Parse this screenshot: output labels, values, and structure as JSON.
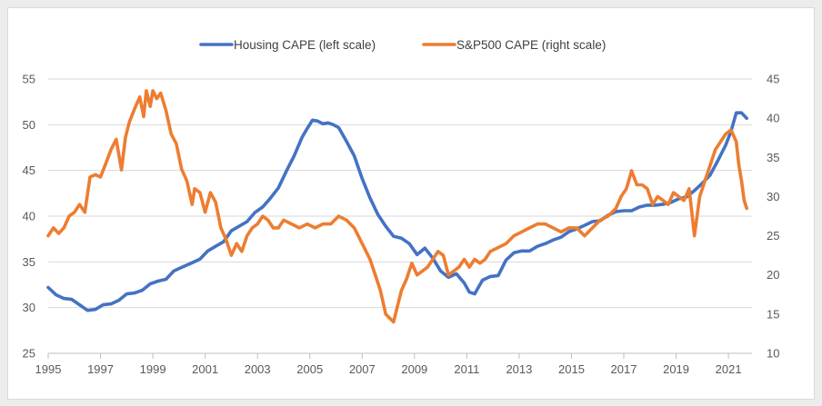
{
  "chart_data": {
    "type": "line",
    "title": "",
    "xlabel": "",
    "ylabel_left": "",
    "ylabel_right": "",
    "x_ticks": [
      "1995",
      "1997",
      "1999",
      "2001",
      "2003",
      "2005",
      "2007",
      "2009",
      "2011",
      "2013",
      "2015",
      "2017",
      "2019",
      "2021"
    ],
    "xlim": [
      1995,
      2021.9
    ],
    "y_left": {
      "ticks": [
        "25",
        "30",
        "35",
        "40",
        "45",
        "50",
        "55"
      ],
      "ylim": [
        25,
        55
      ]
    },
    "y_right": {
      "ticks": [
        "10",
        "15",
        "20",
        "25",
        "30",
        "35",
        "40",
        "45"
      ],
      "ylim": [
        10,
        45
      ]
    },
    "grid": "horizontal",
    "legend_position": "top-center",
    "series": [
      {
        "name": "Housing CAPE (left scale)",
        "axis": "left",
        "color": "#4472c4",
        "x": [
          1995,
          1995.3,
          1995.6,
          1995.9,
          1996.2,
          1996.5,
          1996.8,
          1997.1,
          1997.4,
          1997.7,
          1998.0,
          1998.3,
          1998.6,
          1998.9,
          1999.2,
          1999.5,
          1999.8,
          2000.1,
          2000.5,
          2000.8,
          2001.1,
          2001.4,
          2001.7,
          2002.0,
          2002.3,
          2002.6,
          2002.9,
          2003.2,
          2003.5,
          2003.8,
          2004.1,
          2004.4,
          2004.7,
          2004.9,
          2005.1,
          2005.3,
          2005.5,
          2005.7,
          2005.9,
          2006.1,
          2006.4,
          2006.7,
          2007.0,
          2007.3,
          2007.6,
          2007.9,
          2008.2,
          2008.5,
          2008.8,
          2009.1,
          2009.4,
          2009.7,
          2010.0,
          2010.3,
          2010.6,
          2010.9,
          2011.1,
          2011.3,
          2011.6,
          2011.9,
          2012.2,
          2012.5,
          2012.8,
          2013.1,
          2013.4,
          2013.7,
          2014.0,
          2014.3,
          2014.6,
          2014.9,
          2015.2,
          2015.5,
          2015.8,
          2016.1,
          2016.4,
          2016.7,
          2017.0,
          2017.3,
          2017.6,
          2017.9,
          2018.2,
          2018.5,
          2018.8,
          2019.1,
          2019.4,
          2019.7,
          2020.0,
          2020.3,
          2020.6,
          2020.9,
          2021.1,
          2021.3,
          2021.5,
          2021.7
        ],
        "y": [
          32.2,
          31.4,
          31.0,
          30.9,
          30.3,
          29.7,
          29.8,
          30.3,
          30.4,
          30.8,
          31.5,
          31.6,
          31.9,
          32.6,
          32.9,
          33.1,
          34.0,
          34.4,
          34.9,
          35.3,
          36.2,
          36.7,
          37.2,
          38.4,
          38.9,
          39.4,
          40.4,
          41.0,
          42.0,
          43.1,
          44.9,
          46.6,
          48.6,
          49.6,
          50.5,
          50.4,
          50.1,
          50.2,
          50.0,
          49.7,
          48.2,
          46.6,
          44.1,
          42.0,
          40.2,
          38.9,
          37.8,
          37.6,
          37.0,
          35.8,
          36.5,
          35.4,
          34.0,
          33.3,
          33.7,
          32.7,
          31.7,
          31.5,
          33.0,
          33.4,
          33.5,
          35.2,
          36.0,
          36.2,
          36.2,
          36.7,
          37.0,
          37.4,
          37.7,
          38.3,
          38.6,
          39.0,
          39.4,
          39.5,
          40.1,
          40.5,
          40.6,
          40.6,
          41.0,
          41.2,
          41.2,
          41.3,
          41.5,
          41.9,
          42.1,
          42.8,
          43.6,
          44.5,
          46.1,
          47.8,
          49.3,
          51.3,
          51.3,
          50.7
        ]
      },
      {
        "name": "S&P500 CAPE (right scale)",
        "axis": "right",
        "color": "#ed7d31",
        "x": [
          1995,
          1995.2,
          1995.4,
          1995.6,
          1995.8,
          1996.0,
          1996.2,
          1996.4,
          1996.6,
          1996.8,
          1997.0,
          1997.2,
          1997.4,
          1997.6,
          1997.8,
          1997.95,
          1998.1,
          1998.3,
          1998.5,
          1998.65,
          1998.75,
          1998.9,
          1999.0,
          1999.15,
          1999.3,
          1999.5,
          1999.7,
          1999.9,
          2000.1,
          2000.3,
          2000.5,
          2000.6,
          2000.8,
          2001.0,
          2001.2,
          2001.4,
          2001.6,
          2001.8,
          2002.0,
          2002.2,
          2002.4,
          2002.6,
          2002.8,
          2003.0,
          2003.2,
          2003.4,
          2003.6,
          2003.8,
          2004.0,
          2004.3,
          2004.6,
          2004.9,
          2005.2,
          2005.5,
          2005.8,
          2006.1,
          2006.4,
          2006.7,
          2007.0,
          2007.3,
          2007.5,
          2007.7,
          2007.9,
          2008.05,
          2008.2,
          2008.35,
          2008.5,
          2008.7,
          2008.9,
          2009.1,
          2009.3,
          2009.5,
          2009.7,
          2009.9,
          2010.1,
          2010.3,
          2010.5,
          2010.7,
          2010.9,
          2011.1,
          2011.3,
          2011.5,
          2011.7,
          2011.9,
          2012.2,
          2012.5,
          2012.8,
          2013.1,
          2013.4,
          2013.7,
          2014.0,
          2014.3,
          2014.6,
          2014.9,
          2015.2,
          2015.5,
          2015.8,
          2016.1,
          2016.4,
          2016.7,
          2016.9,
          2017.1,
          2017.3,
          2017.5,
          2017.7,
          2017.9,
          2018.1,
          2018.3,
          2018.5,
          2018.7,
          2018.9,
          2019.1,
          2019.3,
          2019.5,
          2019.7,
          2019.9,
          2020.1,
          2020.3,
          2020.5,
          2020.7,
          2020.9,
          2021.1,
          2021.3,
          2021.4,
          2021.5,
          2021.6,
          2021.7
        ],
        "y": [
          25.0,
          26.0,
          25.3,
          26.0,
          27.5,
          28.0,
          29.0,
          28.0,
          32.5,
          32.8,
          32.5,
          34.2,
          36.0,
          37.3,
          33.4,
          37.5,
          39.5,
          41.2,
          42.7,
          40.2,
          43.5,
          41.5,
          43.5,
          42.5,
          43.2,
          41.0,
          38.0,
          36.7,
          33.5,
          32.0,
          29.0,
          31.0,
          30.5,
          28.0,
          30.5,
          29.3,
          26.0,
          24.5,
          22.5,
          24.0,
          23.0,
          25.0,
          26.0,
          26.5,
          27.5,
          27.0,
          26.0,
          26.0,
          27.0,
          26.5,
          26.0,
          26.5,
          26.0,
          26.5,
          26.5,
          27.5,
          27.0,
          26.0,
          24.0,
          22.0,
          20.0,
          18.0,
          15.0,
          14.5,
          14.0,
          16.0,
          18.0,
          19.5,
          21.5,
          20.0,
          20.5,
          21.0,
          22.0,
          23.0,
          22.5,
          20.0,
          20.5,
          21.0,
          22.0,
          21.0,
          22.0,
          21.5,
          22.0,
          23.0,
          23.5,
          24.0,
          25.0,
          25.5,
          26.0,
          26.5,
          26.5,
          26.0,
          25.5,
          26.0,
          26.0,
          25.0,
          26.0,
          27.0,
          27.5,
          28.5,
          30.0,
          31.0,
          33.3,
          31.5,
          31.5,
          31.0,
          29.0,
          30.0,
          29.5,
          29.0,
          30.5,
          30.0,
          29.5,
          31.0,
          25.0,
          30.0,
          32.0,
          34.0,
          36.0,
          37.0,
          38.0,
          38.5,
          37.0,
          34.0,
          32.0,
          29.5,
          28.5
        ]
      }
    ]
  }
}
